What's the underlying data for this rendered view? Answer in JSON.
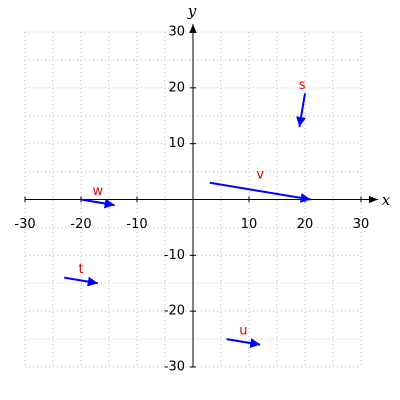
{
  "chart_data": {
    "type": "vector",
    "x_label": "x",
    "y_label": "y",
    "xlim": [
      -30,
      30
    ],
    "ylim": [
      -30,
      30
    ],
    "xticks": [
      -30,
      -20,
      -10,
      10,
      20,
      30
    ],
    "yticks": [
      -30,
      -20,
      -10,
      10,
      20,
      30
    ],
    "grid": true,
    "xgrid": [
      -30,
      -25,
      -20,
      -15,
      -10,
      -5,
      0,
      5,
      10,
      15,
      20,
      25,
      30
    ],
    "ygrid": [
      -30,
      -25,
      -20,
      -15,
      -10,
      -5,
      0,
      5,
      10,
      15,
      20,
      25,
      30
    ],
    "color": "#0000ff",
    "label_color": "#e00000",
    "vectors": [
      {
        "name": "v",
        "x0": 3,
        "y0": 3,
        "x1": 21,
        "y1": 0
      },
      {
        "name": "s",
        "x0": 20,
        "y0": 19,
        "x1": 19,
        "y1": 13
      },
      {
        "name": "w",
        "x0": -20,
        "y0": 0,
        "x1": -14,
        "y1": -1
      },
      {
        "name": "t",
        "x0": -23,
        "y0": -14,
        "x1": -17,
        "y1": -15
      },
      {
        "name": "u",
        "x0": 6,
        "y0": -25,
        "x1": 12,
        "y1": -26
      }
    ]
  }
}
